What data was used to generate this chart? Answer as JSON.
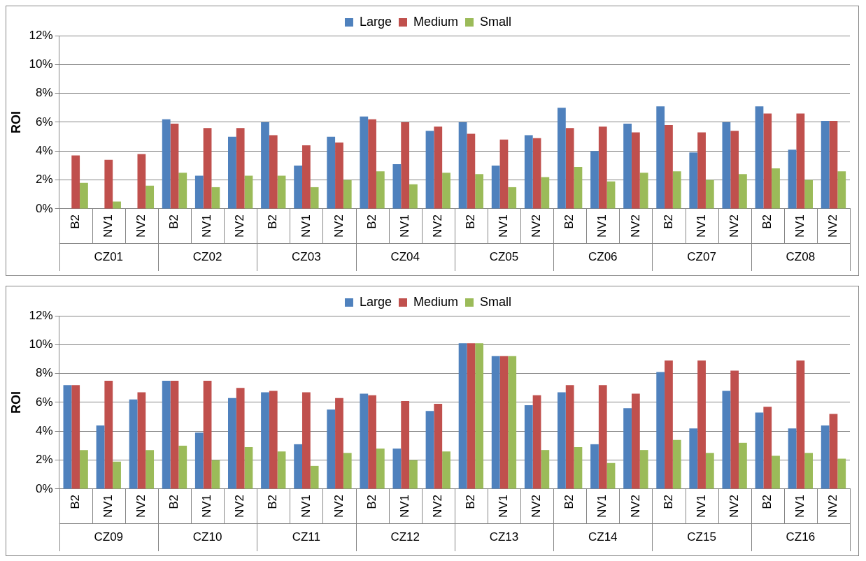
{
  "chart_data": [
    {
      "type": "bar",
      "ylabel": "ROI",
      "categories": [
        "B2",
        "NV1",
        "NV2",
        "B2",
        "NV1",
        "NV2",
        "B2",
        "NV1",
        "NV2",
        "B2",
        "NV1",
        "NV2",
        "B2",
        "NV1",
        "NV2",
        "B2",
        "NV1",
        "NV2",
        "B2",
        "NV1",
        "NV2",
        "B2",
        "NV1",
        "NV2"
      ],
      "annotations": [
        "CZ01",
        "CZ02",
        "CZ03",
        "CZ04",
        "CZ05",
        "CZ06",
        "CZ07",
        "CZ08"
      ],
      "series": [
        {
          "name": "Large",
          "color": "#4f81bd",
          "values": [
            null,
            null,
            null,
            6.2,
            2.3,
            5.0,
            6.0,
            3.0,
            5.0,
            6.4,
            3.1,
            5.4,
            6.0,
            3.0,
            5.1,
            7.0,
            4.0,
            5.9,
            7.1,
            3.9,
            6.0,
            7.1,
            4.1,
            6.1
          ]
        },
        {
          "name": "Medium",
          "color": "#c0504d",
          "values": [
            3.7,
            3.4,
            3.8,
            5.9,
            5.6,
            5.6,
            5.1,
            4.4,
            4.6,
            6.2,
            6.0,
            5.7,
            5.2,
            4.8,
            4.9,
            5.6,
            5.7,
            5.3,
            5.8,
            5.3,
            5.4,
            6.6,
            6.6,
            6.1
          ]
        },
        {
          "name": "Small",
          "color": "#9bbb59",
          "values": [
            1.8,
            0.5,
            1.6,
            2.5,
            1.5,
            2.3,
            2.3,
            1.5,
            2.0,
            2.6,
            1.7,
            2.5,
            2.4,
            1.5,
            2.2,
            2.9,
            1.9,
            2.5,
            2.6,
            2.0,
            2.4,
            2.8,
            2.0,
            2.6
          ]
        }
      ],
      "ylim": [
        0,
        12
      ],
      "yticks": [
        {
          "value": 0,
          "label": "0%"
        },
        {
          "value": 2,
          "label": "2%"
        },
        {
          "value": 4,
          "label": "4%"
        },
        {
          "value": 6,
          "label": "6%"
        },
        {
          "value": 8,
          "label": "8%"
        },
        {
          "value": 10,
          "label": "10%"
        },
        {
          "value": 12,
          "label": "12%"
        }
      ],
      "grid": "y",
      "legend": "top"
    },
    {
      "type": "bar",
      "ylabel": "ROI",
      "categories": [
        "B2",
        "NV1",
        "NV2",
        "B2",
        "NV1",
        "NV2",
        "B2",
        "NV1",
        "NV2",
        "B2",
        "NV1",
        "NV2",
        "B2",
        "NV1",
        "NV2",
        "B2",
        "NV1",
        "NV2",
        "B2",
        "NV1",
        "NV2",
        "B2",
        "NV1",
        "NV2"
      ],
      "annotations": [
        "CZ09",
        "CZ10",
        "CZ11",
        "CZ12",
        "CZ13",
        "CZ14",
        "CZ15",
        "CZ16"
      ],
      "series": [
        {
          "name": "Large",
          "color": "#4f81bd",
          "values": [
            7.2,
            4.4,
            6.2,
            7.5,
            3.9,
            6.3,
            6.7,
            3.1,
            5.5,
            6.6,
            2.8,
            5.4,
            10.1,
            9.2,
            5.8,
            6.7,
            3.1,
            5.6,
            8.1,
            4.2,
            6.8,
            5.3,
            4.2,
            4.4
          ]
        },
        {
          "name": "Medium",
          "color": "#c0504d",
          "values": [
            7.2,
            7.5,
            6.7,
            7.5,
            7.5,
            7.0,
            6.8,
            6.7,
            6.3,
            6.5,
            6.1,
            5.9,
            10.1,
            9.2,
            6.5,
            7.2,
            7.2,
            6.6,
            8.9,
            8.9,
            8.2,
            5.7,
            8.9,
            5.2
          ]
        },
        {
          "name": "Small",
          "color": "#9bbb59",
          "values": [
            2.7,
            1.9,
            2.7,
            3.0,
            2.0,
            2.9,
            2.6,
            1.6,
            2.5,
            2.8,
            2.0,
            2.6,
            10.1,
            9.2,
            2.7,
            2.9,
            1.8,
            2.7,
            3.4,
            2.5,
            3.2,
            2.3,
            2.5,
            2.1
          ]
        }
      ],
      "ylim": [
        0,
        12
      ],
      "yticks": [
        {
          "value": 0,
          "label": "0%"
        },
        {
          "value": 2,
          "label": "2%"
        },
        {
          "value": 4,
          "label": "4%"
        },
        {
          "value": 6,
          "label": "6%"
        },
        {
          "value": 8,
          "label": "8%"
        },
        {
          "value": 10,
          "label": "10%"
        },
        {
          "value": 12,
          "label": "12%"
        }
      ],
      "grid": "y",
      "legend": "top"
    }
  ]
}
